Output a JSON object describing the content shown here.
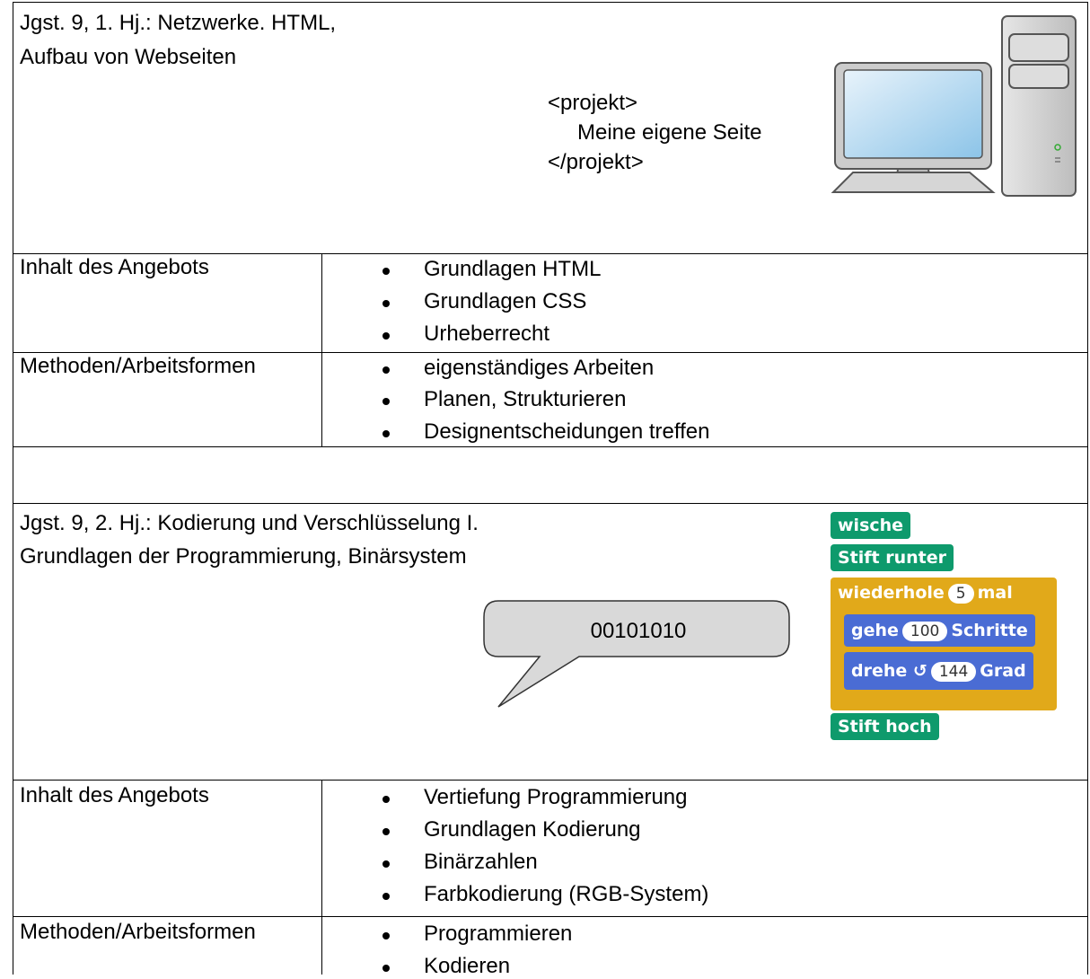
{
  "sections": [
    {
      "title": [
        "Jgst. 9, 1. Hj.: Netzwerke. HTML,",
        "Aufbau von Webseiten"
      ],
      "code": [
        "<projekt>",
        "Meine eigene Seite",
        "</projekt>"
      ],
      "rows": [
        {
          "label": "Inhalt des Angebots",
          "items": [
            "Grundlagen HTML",
            "Grundlagen CSS",
            "Urheberrecht"
          ]
        },
        {
          "label": "Methoden/Arbeitsformen",
          "items": [
            "eigenständiges Arbeiten",
            "Planen, Strukturieren",
            "Designentscheidungen treffen"
          ]
        }
      ]
    },
    {
      "title": [
        "Jgst. 9, 2. Hj.: Kodierung und Verschlüsselung I.",
        "Grundlagen der Programmierung, Binärsystem"
      ],
      "bubble": "00101010",
      "blocks": {
        "clear": "wische",
        "pen_down": "Stift runter",
        "repeat": {
          "label": "wiederhole",
          "count": "5",
          "unit": "mal"
        },
        "move": {
          "label": "gehe",
          "steps": "100",
          "unit": "Schritte"
        },
        "turn": {
          "label": "drehe",
          "degrees": "144",
          "unit": "Grad"
        },
        "pen_up": "Stift hoch"
      },
      "rows": [
        {
          "label": "Inhalt des Angebots",
          "items": [
            "Vertiefung Programmierung",
            "Grundlagen Kodierung",
            "Binärzahlen",
            "Farbkodierung (RGB-System)"
          ]
        },
        {
          "label": "Methoden/Arbeitsformen",
          "items": [
            "Programmieren",
            "Kodieren"
          ]
        }
      ]
    }
  ]
}
